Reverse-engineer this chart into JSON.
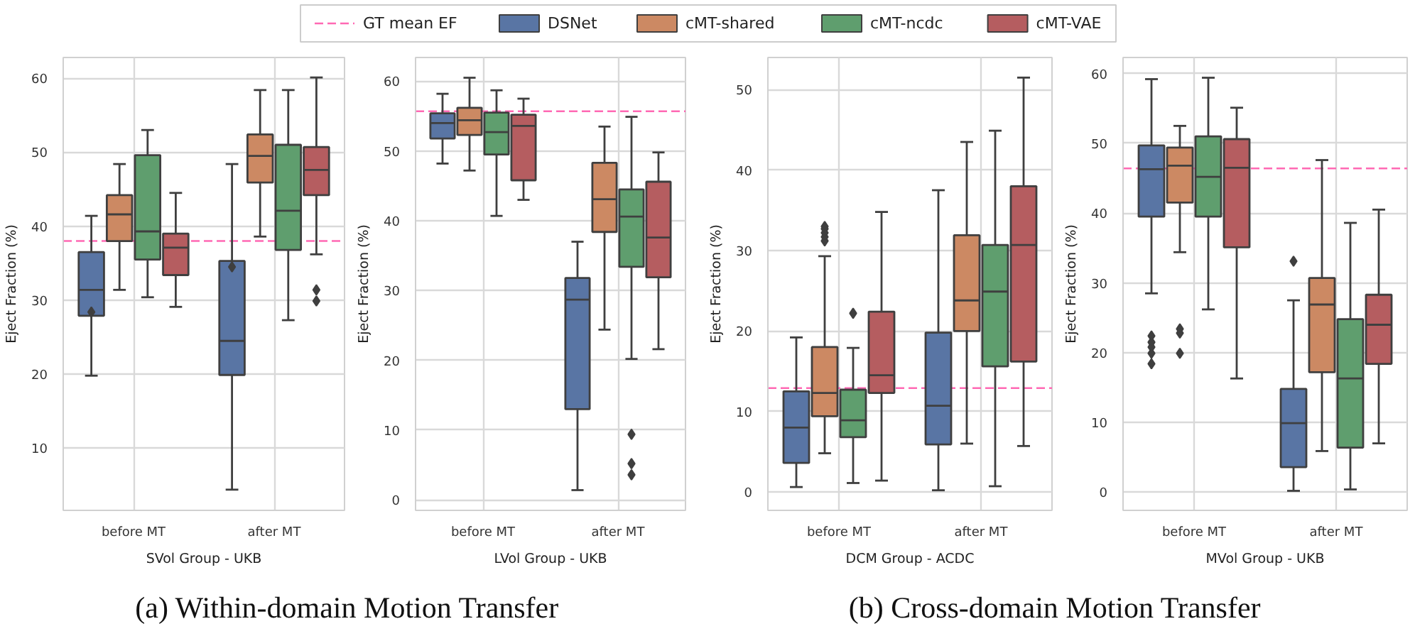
{
  "chart_data": [
    {
      "type": "box",
      "xlabel": "SVol Group - UKB",
      "ylabel": "Eject Fraction (%)",
      "categories": [
        "before MT",
        "after MT"
      ],
      "ylim": [
        1.6,
        62.8
      ],
      "yticks": [
        10,
        20,
        30,
        40,
        50,
        60
      ],
      "grid": true,
      "legend": "top",
      "annotations": [
        "(a) Within-domain Motion Transfer"
      ],
      "ref_lines": [
        {
          "axis": "y",
          "value": 38,
          "label": "GT mean EF",
          "color": "#ff69b4",
          "line_style": "dashed"
        }
      ],
      "series": [
        {
          "name": "DSNet",
          "color": "#5975a4",
          "boxes": [
            {
              "low": 19.8,
              "q1": 27.9,
              "median": 31.4,
              "q3": 36.5,
              "high": 41.4,
              "outliers": [
                28.4
              ]
            },
            {
              "low": 4.4,
              "q1": 19.9,
              "median": 24.5,
              "q3": 35.3,
              "high": 48.4,
              "outliers": [
                34.5
              ]
            }
          ]
        },
        {
          "name": "cMT-shared",
          "color": "#cc8963",
          "boxes": [
            {
              "low": 31.4,
              "q1": 38,
              "median": 41.6,
              "q3": 44.2,
              "high": 48.4
            },
            {
              "low": 38.6,
              "q1": 45.9,
              "median": 49.5,
              "q3": 52.4,
              "high": 58.4
            }
          ]
        },
        {
          "name": "cMT-ncdc",
          "color": "#5f9e6e",
          "boxes": [
            {
              "low": 30.4,
              "q1": 35.5,
              "median": 39.3,
              "q3": 49.6,
              "high": 53
            },
            {
              "low": 27.3,
              "q1": 36.8,
              "median": 42.1,
              "q3": 51,
              "high": 58.4
            }
          ]
        },
        {
          "name": "cMT-VAE",
          "color": "#b55d60",
          "boxes": [
            {
              "low": 29.1,
              "q1": 33.4,
              "median": 37.1,
              "q3": 39,
              "high": 44.5
            },
            {
              "low": 36.2,
              "q1": 44.2,
              "median": 47.6,
              "q3": 50.7,
              "high": 60.1,
              "outliers": [
                31.4,
                29.9
              ]
            }
          ]
        }
      ]
    },
    {
      "type": "box",
      "xlabel": "LVol Group - UKB",
      "ylabel": "Eject Fraction (%)",
      "categories": [
        "before MT",
        "after MT"
      ],
      "ylim": [
        -1.5,
        63.4
      ],
      "yticks": [
        0,
        10,
        20,
        30,
        40,
        50,
        60
      ],
      "grid": true,
      "ref_lines": [
        {
          "axis": "y",
          "value": 55.7,
          "color": "#ff69b4",
          "line_style": "dashed"
        }
      ],
      "series": [
        {
          "color": "#5975a4",
          "boxes": [
            {
              "low": 48.2,
              "q1": 51.8,
              "median": 54,
              "q3": 55.4,
              "high": 58.2
            },
            {
              "low": 1.4,
              "q1": 13,
              "median": 28.7,
              "q3": 31.8,
              "high": 37
            }
          ]
        },
        {
          "color": "#cc8963",
          "boxes": [
            {
              "low": 47.2,
              "q1": 52.3,
              "median": 54.4,
              "q3": 56.2,
              "high": 60.5
            },
            {
              "low": 24.4,
              "q1": 38.4,
              "median": 43.1,
              "q3": 48.3,
              "high": 53.5
            }
          ]
        },
        {
          "color": "#5f9e6e",
          "boxes": [
            {
              "low": 40.7,
              "q1": 49.5,
              "median": 52.7,
              "q3": 55.5,
              "high": 58.7
            },
            {
              "low": 20.2,
              "q1": 33.4,
              "median": 40.6,
              "q3": 44.5,
              "high": 54.9,
              "outliers": [
                9.4,
                5.2,
                3.6
              ]
            }
          ]
        },
        {
          "color": "#b55d60",
          "boxes": [
            {
              "low": 43,
              "q1": 45.8,
              "median": 53.6,
              "q3": 55.2,
              "high": 57.5
            },
            {
              "low": 21.6,
              "q1": 31.9,
              "median": 37.6,
              "q3": 45.6,
              "high": 49.8
            }
          ]
        }
      ]
    },
    {
      "type": "box",
      "xlabel": "DCM Group - ACDC",
      "ylabel": "Eject Fraction (%)",
      "categories": [
        "before MT",
        "after MT"
      ],
      "ylim": [
        -2.3,
        54
      ],
      "yticks": [
        0,
        10,
        20,
        30,
        40,
        50
      ],
      "grid": true,
      "annotations": [
        "(b) Cross-domain Motion Transfer"
      ],
      "ref_lines": [
        {
          "axis": "y",
          "value": 12.9,
          "color": "#ff69b4",
          "line_style": "dashed"
        }
      ],
      "series": [
        {
          "color": "#5975a4",
          "boxes": [
            {
              "low": 0.6,
              "q1": 3.6,
              "median": 8,
              "q3": 12.5,
              "high": 19.2
            },
            {
              "low": 0.2,
              "q1": 5.9,
              "median": 10.7,
              "q3": 19.8,
              "high": 37.5
            }
          ]
        },
        {
          "color": "#cc8963",
          "boxes": [
            {
              "low": 4.8,
              "q1": 9.4,
              "median": 12.3,
              "q3": 18,
              "high": 29.3,
              "outliers": [
                31.2,
                31.7,
                32.2,
                32.7,
                33
              ]
            },
            {
              "low": 6,
              "q1": 20,
              "median": 23.8,
              "q3": 31.9,
              "high": 43.5
            }
          ]
        },
        {
          "color": "#5f9e6e",
          "boxes": [
            {
              "low": 1.1,
              "q1": 6.8,
              "median": 8.9,
              "q3": 12.7,
              "high": 17.9,
              "outliers": [
                22.2
              ]
            },
            {
              "low": 0.7,
              "q1": 15.6,
              "median": 24.9,
              "q3": 30.7,
              "high": 44.9
            }
          ]
        },
        {
          "color": "#b55d60",
          "boxes": [
            {
              "low": 1.4,
              "q1": 12.3,
              "median": 14.5,
              "q3": 22.4,
              "high": 34.8
            },
            {
              "low": 5.7,
              "q1": 16.2,
              "median": 30.7,
              "q3": 38,
              "high": 51.5
            }
          ]
        }
      ]
    },
    {
      "type": "box",
      "xlabel": "MVol Group - UKB",
      "ylabel": "Eject Fraction (%)",
      "categories": [
        "before MT",
        "after MT"
      ],
      "ylim": [
        -2.6,
        62.3
      ],
      "yticks": [
        0,
        10,
        20,
        30,
        40,
        50,
        60
      ],
      "grid": true,
      "ref_lines": [
        {
          "axis": "y",
          "value": 46.4,
          "color": "#ff69b4",
          "line_style": "dashed"
        }
      ],
      "series": [
        {
          "color": "#5975a4",
          "boxes": [
            {
              "low": 28.5,
              "q1": 39.5,
              "median": 46.3,
              "q3": 49.7,
              "high": 59.2,
              "outliers": [
                18.4,
                19.9,
                20.8,
                21.5,
                22.4
              ]
            },
            {
              "low": 0.2,
              "q1": 3.6,
              "median": 9.9,
              "q3": 14.8,
              "high": 27.5,
              "outliers": [
                33.1
              ]
            }
          ]
        },
        {
          "color": "#cc8963",
          "boxes": [
            {
              "low": 34.4,
              "q1": 41.5,
              "median": 46.8,
              "q3": 49.4,
              "high": 52.5,
              "outliers": [
                19.9,
                22.8,
                23.4
              ]
            },
            {
              "low": 5.9,
              "q1": 17.2,
              "median": 26.9,
              "q3": 30.7,
              "high": 47.6
            }
          ]
        },
        {
          "color": "#5f9e6e",
          "boxes": [
            {
              "low": 26.2,
              "q1": 39.5,
              "median": 45.2,
              "q3": 51,
              "high": 59.4
            },
            {
              "low": 0.4,
              "q1": 6.4,
              "median": 16.3,
              "q3": 24.8,
              "high": 38.6
            }
          ]
        },
        {
          "color": "#b55d60",
          "boxes": [
            {
              "low": 16.3,
              "q1": 35.1,
              "median": 46.5,
              "q3": 50.6,
              "high": 55.1
            },
            {
              "low": 7,
              "q1": 18.4,
              "median": 24,
              "q3": 28.3,
              "high": 40.5
            }
          ]
        }
      ]
    }
  ]
}
